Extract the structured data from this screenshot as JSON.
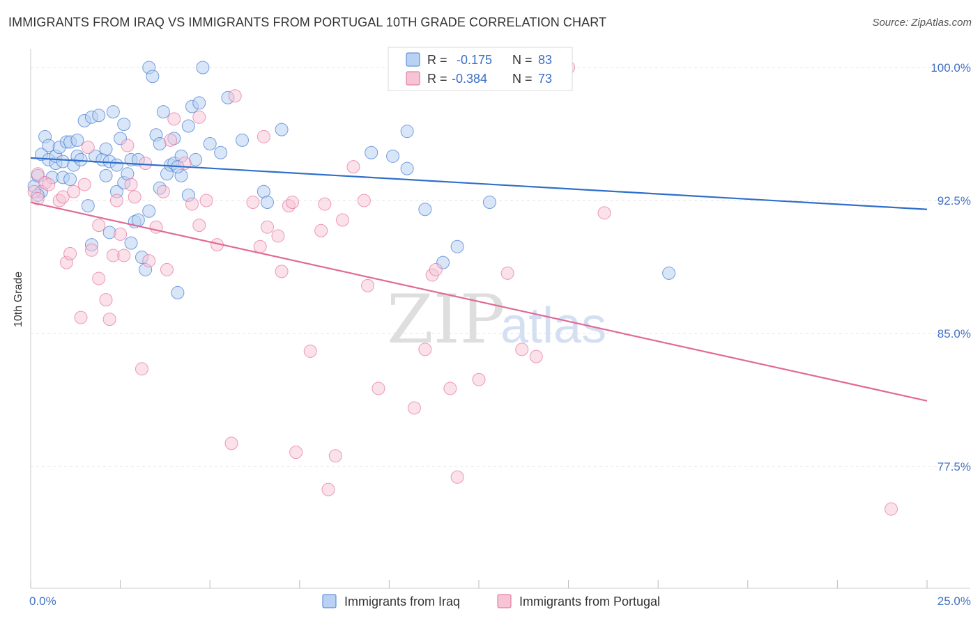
{
  "header": {
    "title": "IMMIGRANTS FROM IRAQ VS IMMIGRANTS FROM PORTUGAL 10TH GRADE CORRELATION CHART",
    "source": "Source: ZipAtlas.com"
  },
  "watermark": {
    "zip": "ZIP",
    "atlas": "atlas"
  },
  "colors": {
    "iraq": "#4a7fd4",
    "iraq_fill": "#b9d1f2",
    "portugal": "#e06a96",
    "portugal_fill": "#f7c4d5",
    "axis_label": "#4472c4",
    "grid": "#e3e3e3"
  },
  "legend": {
    "rows": [
      {
        "r_label": "R =",
        "r_value": "-0.175",
        "n_label": "N =",
        "n_value": "83"
      },
      {
        "r_label": "R =",
        "r_value": "-0.384",
        "n_label": "N =",
        "n_value": "73"
      }
    ]
  },
  "chart_data": {
    "type": "scatter",
    "title": "IMMIGRANTS FROM IRAQ VS IMMIGRANTS FROM PORTUGAL 10TH GRADE CORRELATION CHART",
    "xlabel": "",
    "ylabel": "10th Grade",
    "xlim": [
      0,
      25
    ],
    "ylim": [
      71,
      101.5
    ],
    "x_tick_labels": [
      "0.0%",
      "25.0%"
    ],
    "y_ticks": [
      77.5,
      85.0,
      92.5,
      100.0
    ],
    "y_tick_labels": [
      "77.5%",
      "85.0%",
      "92.5%",
      "100.0%"
    ],
    "grid": "horizontal dashed",
    "legend_position": "bottom",
    "series": [
      {
        "name": "Immigrants from Iraq",
        "r": -0.175,
        "n": 83,
        "trend": [
          [
            0,
            94.9
          ],
          [
            25,
            92.0
          ]
        ],
        "points": [
          [
            0.1,
            93.3
          ],
          [
            0.2,
            93.9
          ],
          [
            0.3,
            93.0
          ],
          [
            0.3,
            95.1
          ],
          [
            0.4,
            96.1
          ],
          [
            0.5,
            94.8
          ],
          [
            0.5,
            95.6
          ],
          [
            0.6,
            93.8
          ],
          [
            0.7,
            94.6
          ],
          [
            0.7,
            95.0
          ],
          [
            0.8,
            95.5
          ],
          [
            0.9,
            93.8
          ],
          [
            0.9,
            94.7
          ],
          [
            1.0,
            95.8
          ],
          [
            1.1,
            95.8
          ],
          [
            1.1,
            93.7
          ],
          [
            1.2,
            94.5
          ],
          [
            1.3,
            95.0
          ],
          [
            1.3,
            95.9
          ],
          [
            1.4,
            94.8
          ],
          [
            1.5,
            97.0
          ],
          [
            1.6,
            92.2
          ],
          [
            1.7,
            97.2
          ],
          [
            1.7,
            90.0
          ],
          [
            1.8,
            95.0
          ],
          [
            1.9,
            97.3
          ],
          [
            2.0,
            94.8
          ],
          [
            2.1,
            93.9
          ],
          [
            2.1,
            95.4
          ],
          [
            2.2,
            94.7
          ],
          [
            2.2,
            90.7
          ],
          [
            2.3,
            97.5
          ],
          [
            2.4,
            94.5
          ],
          [
            2.4,
            93.0
          ],
          [
            2.5,
            96.0
          ],
          [
            2.6,
            93.5
          ],
          [
            2.6,
            96.8
          ],
          [
            2.7,
            94.0
          ],
          [
            2.8,
            94.8
          ],
          [
            2.8,
            90.1
          ],
          [
            2.9,
            91.3
          ],
          [
            3.0,
            94.8
          ],
          [
            3.1,
            89.3
          ],
          [
            3.2,
            88.6
          ],
          [
            3.3,
            91.9
          ],
          [
            3.3,
            100.0
          ],
          [
            3.4,
            99.5
          ],
          [
            3.5,
            96.2
          ],
          [
            3.6,
            95.7
          ],
          [
            3.6,
            93.2
          ],
          [
            3.7,
            97.5
          ],
          [
            3.8,
            94.0
          ],
          [
            3.9,
            94.5
          ],
          [
            4.0,
            94.6
          ],
          [
            4.0,
            96.0
          ],
          [
            4.1,
            87.3
          ],
          [
            4.2,
            93.9
          ],
          [
            4.2,
            95.0
          ],
          [
            4.4,
            92.8
          ],
          [
            4.4,
            96.7
          ],
          [
            4.5,
            97.8
          ],
          [
            4.6,
            94.8
          ],
          [
            4.7,
            98.0
          ],
          [
            4.8,
            100.0
          ],
          [
            5.0,
            95.7
          ],
          [
            5.3,
            95.2
          ],
          [
            5.5,
            98.3
          ],
          [
            5.9,
            95.9
          ],
          [
            6.5,
            93.0
          ],
          [
            6.6,
            92.4
          ],
          [
            7.0,
            96.5
          ],
          [
            9.5,
            95.2
          ],
          [
            10.1,
            95.0
          ],
          [
            10.5,
            94.3
          ],
          [
            10.5,
            96.4
          ],
          [
            11.0,
            92.0
          ],
          [
            11.5,
            89.0
          ],
          [
            11.9,
            89.9
          ],
          [
            12.8,
            92.4
          ],
          [
            17.8,
            88.4
          ],
          [
            4.1,
            94.4
          ],
          [
            0.2,
            92.8
          ],
          [
            3.0,
            91.4
          ]
        ]
      },
      {
        "name": "Immigrants from Portugal",
        "r": -0.384,
        "n": 73,
        "trend": [
          [
            0,
            92.4
          ],
          [
            25,
            81.2
          ]
        ],
        "points": [
          [
            0.1,
            93.0
          ],
          [
            0.2,
            94.0
          ],
          [
            0.4,
            93.5
          ],
          [
            0.5,
            93.4
          ],
          [
            0.8,
            92.5
          ],
          [
            0.9,
            92.7
          ],
          [
            1.0,
            89.0
          ],
          [
            1.1,
            89.5
          ],
          [
            1.2,
            93.0
          ],
          [
            1.4,
            85.9
          ],
          [
            1.5,
            93.4
          ],
          [
            1.6,
            95.5
          ],
          [
            1.7,
            89.7
          ],
          [
            1.9,
            91.1
          ],
          [
            1.9,
            88.1
          ],
          [
            2.1,
            86.9
          ],
          [
            2.2,
            85.8
          ],
          [
            2.3,
            89.4
          ],
          [
            2.4,
            92.5
          ],
          [
            2.5,
            90.6
          ],
          [
            2.6,
            89.4
          ],
          [
            2.7,
            95.6
          ],
          [
            2.8,
            93.4
          ],
          [
            2.9,
            92.7
          ],
          [
            3.1,
            83.0
          ],
          [
            3.2,
            94.6
          ],
          [
            3.3,
            89.1
          ],
          [
            3.5,
            91.0
          ],
          [
            3.7,
            93.0
          ],
          [
            3.8,
            88.6
          ],
          [
            3.9,
            95.9
          ],
          [
            4.0,
            97.1
          ],
          [
            4.3,
            94.6
          ],
          [
            4.5,
            92.3
          ],
          [
            4.7,
            91.1
          ],
          [
            4.7,
            97.2
          ],
          [
            4.9,
            92.5
          ],
          [
            5.2,
            90.0
          ],
          [
            5.6,
            78.8
          ],
          [
            5.7,
            98.4
          ],
          [
            6.2,
            92.4
          ],
          [
            6.4,
            89.9
          ],
          [
            6.5,
            96.1
          ],
          [
            6.6,
            91.0
          ],
          [
            6.9,
            90.5
          ],
          [
            7.0,
            88.5
          ],
          [
            7.2,
            92.2
          ],
          [
            7.3,
            92.4
          ],
          [
            7.4,
            78.3
          ],
          [
            7.8,
            84.0
          ],
          [
            8.1,
            90.8
          ],
          [
            8.2,
            92.3
          ],
          [
            8.3,
            76.2
          ],
          [
            8.5,
            78.1
          ],
          [
            8.7,
            91.4
          ],
          [
            9.0,
            94.4
          ],
          [
            9.3,
            92.5
          ],
          [
            9.4,
            87.7
          ],
          [
            9.7,
            81.9
          ],
          [
            10.7,
            80.8
          ],
          [
            11.0,
            84.1
          ],
          [
            11.2,
            88.3
          ],
          [
            11.3,
            88.6
          ],
          [
            11.7,
            81.9
          ],
          [
            11.9,
            76.9
          ],
          [
            12.5,
            82.4
          ],
          [
            13.3,
            88.4
          ],
          [
            13.7,
            84.1
          ],
          [
            14.1,
            83.7
          ],
          [
            15.0,
            100.0
          ],
          [
            16.0,
            91.8
          ],
          [
            24.0,
            75.1
          ],
          [
            0.2,
            92.6
          ]
        ]
      }
    ]
  }
}
